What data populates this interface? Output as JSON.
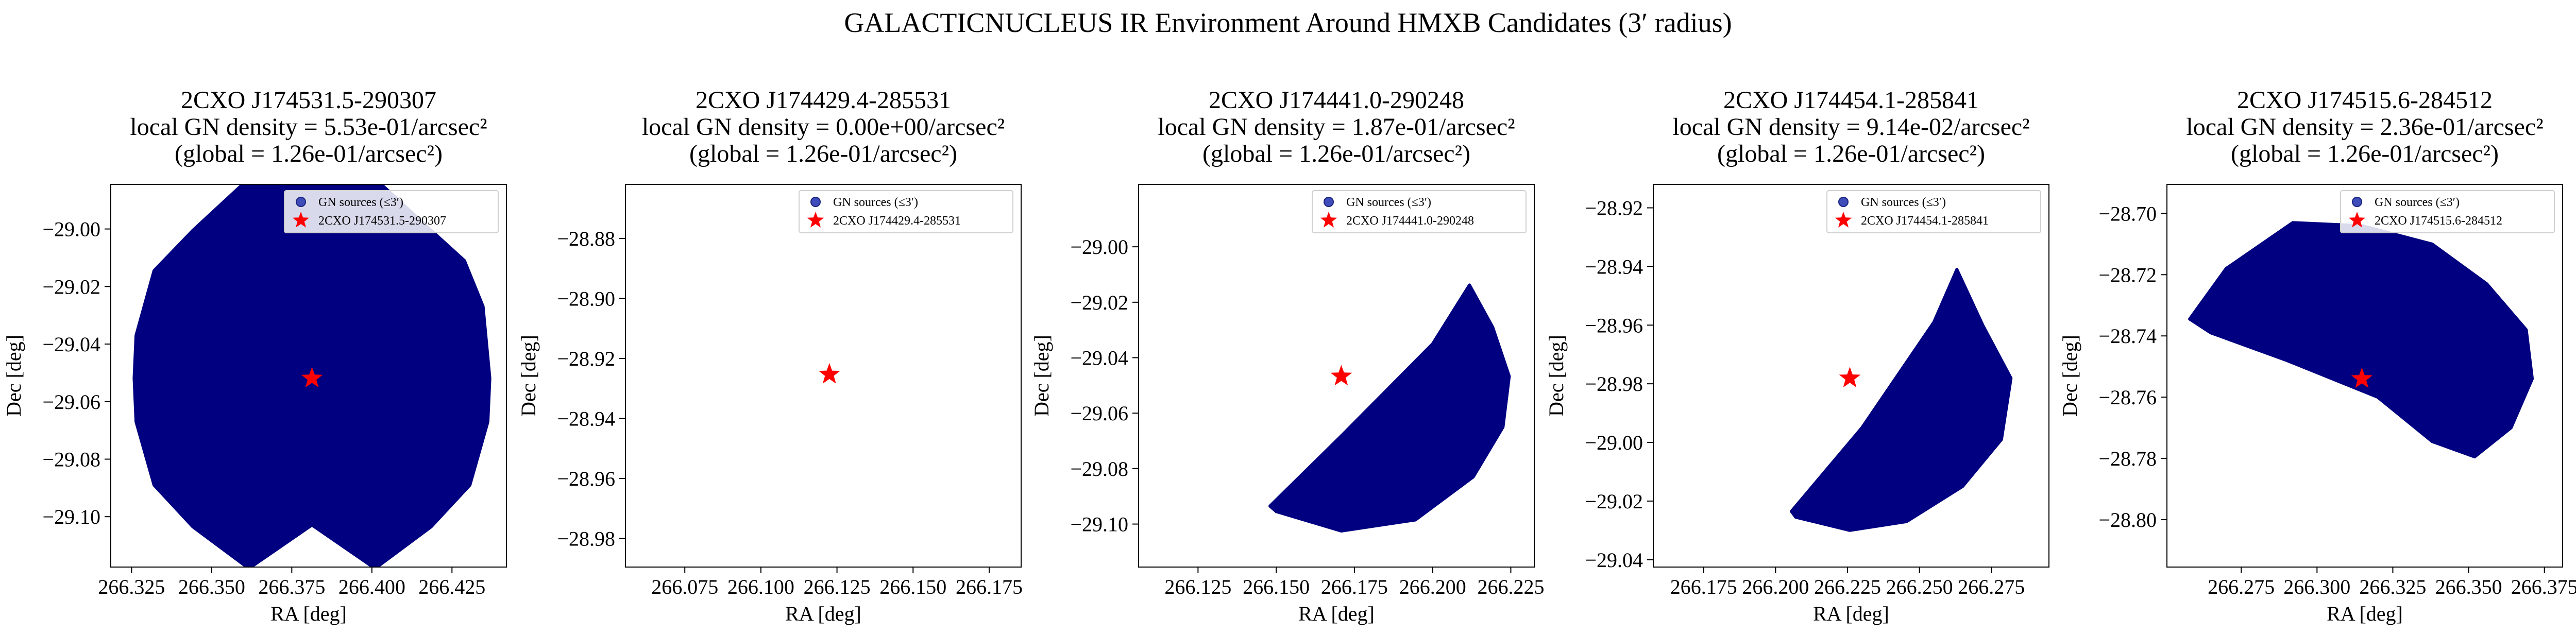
{
  "figure": {
    "suptitle": "GALACTICNUCLEUS IR Environment Around HMXB Candidates (3′ radius)"
  },
  "colors": {
    "source_fill": "#000080",
    "legend_marker": "#3f4dbb",
    "star": "#ff0000"
  },
  "chart_data": [
    {
      "type": "scatter",
      "title_lines": [
        "2CXO J174531.5-290307",
        "local GN density = 5.53e-01/arcsec²",
        "(global = 1.26e-01/arcsec²)"
      ],
      "xlabel": "RA [deg]",
      "ylabel": "Dec [deg]",
      "xlim": [
        266.3185,
        266.442
      ],
      "ylim": [
        -29.1175,
        -28.9845
      ],
      "xticks": [
        266.325,
        266.35,
        266.375,
        266.4,
        266.425
      ],
      "xtick_labels": [
        "266.325",
        "266.350",
        "266.375",
        "266.400",
        "266.425"
      ],
      "yticks": [
        -29.0,
        -29.02,
        -29.04,
        -29.06,
        -29.08,
        -29.1
      ],
      "ytick_labels": [
        "−29.00",
        "−29.02",
        "−29.04",
        "−29.06",
        "−29.08",
        "−29.10"
      ],
      "legend": [
        "GN sources (≤3′)",
        "2CXO J174531.5-290307"
      ],
      "source": {
        "ra": 266.3813,
        "dec": -29.0519
      },
      "region_outline": [
        [
          266.4368,
          -29.0519
        ],
        [
          266.4347,
          -29.0269
        ],
        [
          266.4289,
          -29.011
        ],
        [
          266.4185,
          -29.0005
        ],
        [
          266.401,
          -28.9825
        ],
        [
          266.3813,
          -28.9769
        ],
        [
          266.3616,
          -28.9825
        ],
        [
          266.3441,
          -29.0005
        ],
        [
          266.332,
          -29.0145
        ],
        [
          266.3264,
          -29.037
        ],
        [
          266.3258,
          -29.0519
        ],
        [
          266.3264,
          -29.067
        ],
        [
          266.332,
          -29.089
        ],
        [
          266.3441,
          -29.1035
        ],
        [
          266.3616,
          -29.118
        ],
        [
          266.3813,
          -29.1029
        ],
        [
          266.401,
          -29.118
        ],
        [
          266.4185,
          -29.1035
        ],
        [
          266.4306,
          -29.089
        ],
        [
          266.4362,
          -29.067
        ]
      ],
      "region_outline_note": "dense GN source cloud enclosed by this boundary"
    },
    {
      "type": "scatter",
      "title_lines": [
        "2CXO J174429.4-285531",
        "local GN density = 0.00e+00/arcsec²",
        "(global = 1.26e-01/arcsec²)"
      ],
      "xlabel": "RA [deg]",
      "ylabel": "Dec [deg]",
      "xlim": [
        266.0555,
        266.1855
      ],
      "ylim": [
        -28.9895,
        -28.862
      ],
      "xticks": [
        266.075,
        266.1,
        266.125,
        266.15,
        266.175
      ],
      "xtick_labels": [
        "266.075",
        "266.100",
        "266.125",
        "266.150",
        "266.175"
      ],
      "yticks": [
        -28.88,
        -28.9,
        -28.92,
        -28.94,
        -28.96,
        -28.98
      ],
      "ytick_labels": [
        "−28.88",
        "−28.90",
        "−28.92",
        "−28.94",
        "−28.96",
        "−28.98"
      ],
      "legend": [
        "GN sources (≤3′)",
        "2CXO J174429.4-285531"
      ],
      "source": {
        "ra": 266.1225,
        "dec": -28.9253
      },
      "region_outline": []
    },
    {
      "type": "scatter",
      "title_lines": [
        "2CXO J174441.0-290248",
        "local GN density = 1.87e-01/arcsec²",
        "(global = 1.26e-01/arcsec²)"
      ],
      "xlabel": "RA [deg]",
      "ylabel": "Dec [deg]",
      "xlim": [
        266.106,
        266.2325
      ],
      "ylim": [
        -29.1155,
        -28.9775
      ],
      "xticks": [
        266.125,
        266.15,
        266.175,
        266.2,
        266.225
      ],
      "xtick_labels": [
        "266.125",
        "266.150",
        "266.175",
        "266.200",
        "266.225"
      ],
      "yticks": [
        -29.0,
        -29.02,
        -29.04,
        -29.06,
        -29.08,
        -29.1
      ],
      "ytick_labels": [
        "−29.00",
        "−29.02",
        "−29.04",
        "−29.06",
        "−29.08",
        "−29.10"
      ],
      "legend": [
        "GN sources (≤3′)",
        "2CXO J174441.0-290248"
      ],
      "source": {
        "ra": 266.1708,
        "dec": -29.0467
      },
      "region_outline": [
        [
          266.2118,
          -29.0138
        ],
        [
          266.2192,
          -29.029
        ],
        [
          266.2245,
          -29.0467
        ],
        [
          266.2225,
          -29.065
        ],
        [
          266.213,
          -29.083
        ],
        [
          266.1945,
          -29.0985
        ],
        [
          266.1708,
          -29.1025
        ],
        [
          266.15,
          -29.0955
        ],
        [
          266.148,
          -29.0935
        ],
        [
          266.171,
          -29.068
        ],
        [
          266.2,
          -29.035
        ]
      ],
      "region_outline_note": "dense GN source cloud enclosed by this boundary"
    },
    {
      "type": "scatter",
      "title_lines": [
        "2CXO J174454.1-285841",
        "local GN density = 9.14e-02/arcsec²",
        "(global = 1.26e-01/arcsec²)"
      ],
      "xlabel": "RA [deg]",
      "ylabel": "Dec [deg]",
      "xlim": [
        266.1575,
        266.295
      ],
      "ylim": [
        -29.0425,
        -28.912
      ],
      "xticks": [
        266.175,
        266.2,
        266.225,
        266.25,
        266.275
      ],
      "xtick_labels": [
        "266.175",
        "266.200",
        "266.225",
        "266.250",
        "266.275"
      ],
      "yticks": [
        -28.92,
        -28.94,
        -28.96,
        -28.98,
        -29.0,
        -29.02,
        -29.04
      ],
      "ytick_labels": [
        "−28.92",
        "−28.94",
        "−28.96",
        "−28.98",
        "−29.00",
        "−29.02",
        "−29.04"
      ],
      "legend": [
        "GN sources (≤3′)",
        "2CXO J174454.1-285841"
      ],
      "source": {
        "ra": 266.2258,
        "dec": -28.9781
      },
      "region_outline": [
        [
          266.263,
          -28.941
        ],
        [
          266.272,
          -28.96
        ],
        [
          266.2818,
          -28.9781
        ],
        [
          266.2785,
          -28.999
        ],
        [
          266.265,
          -29.015
        ],
        [
          266.2455,
          -29.027
        ],
        [
          266.2258,
          -29.03
        ],
        [
          266.207,
          -29.0255
        ],
        [
          266.2055,
          -29.0235
        ],
        [
          266.23,
          -28.995
        ],
        [
          266.255,
          -28.959
        ]
      ],
      "region_outline_note": "dense GN source cloud enclosed by this boundary"
    },
    {
      "type": "scatter",
      "title_lines": [
        "2CXO J174515.6-284512",
        "local GN density = 2.36e-01/arcsec²",
        "(global = 1.26e-01/arcsec²)"
      ],
      "xlabel": "RA [deg]",
      "ylabel": "Dec [deg]",
      "xlim": [
        266.2505,
        266.381
      ],
      "ylim": [
        -28.8155,
        -28.6905
      ],
      "xticks": [
        266.275,
        266.3,
        266.325,
        266.35,
        266.375
      ],
      "xtick_labels": [
        "266.275",
        "266.300",
        "266.325",
        "266.350",
        "266.375"
      ],
      "yticks": [
        -28.7,
        -28.72,
        -28.74,
        -28.76,
        -28.78,
        -28.8
      ],
      "ytick_labels": [
        "−28.70",
        "−28.72",
        "−28.74",
        "−28.76",
        "−28.78",
        "−28.80"
      ],
      "legend": [
        "GN sources (≤3′)",
        "2CXO J174515.6-284512"
      ],
      "source": {
        "ra": 266.3148,
        "dec": -28.754
      },
      "region_outline": [
        [
          266.258,
          -28.7345
        ],
        [
          266.27,
          -28.718
        ],
        [
          266.292,
          -28.703
        ],
        [
          266.3148,
          -28.704
        ],
        [
          266.338,
          -28.71
        ],
        [
          266.356,
          -28.723
        ],
        [
          266.369,
          -28.738
        ],
        [
          266.371,
          -28.754
        ],
        [
          266.364,
          -28.77
        ],
        [
          266.352,
          -28.7795
        ],
        [
          266.338,
          -28.7745
        ],
        [
          266.32,
          -28.76
        ],
        [
          266.29,
          -28.748
        ],
        [
          266.265,
          -28.739
        ]
      ],
      "region_outline_note": "dense GN source cloud enclosed by this boundary"
    }
  ]
}
